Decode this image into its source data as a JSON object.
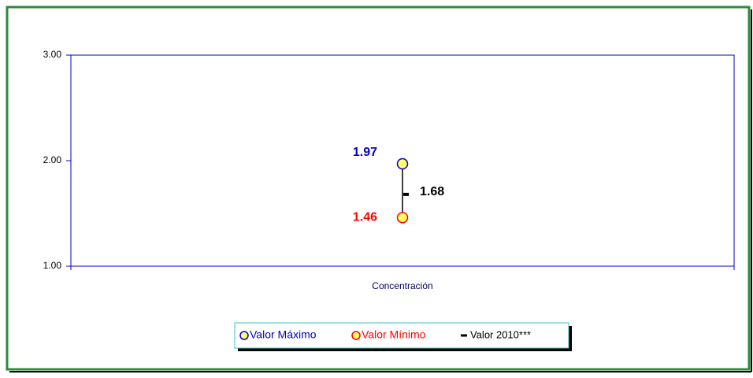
{
  "chart_data": {
    "type": "hilo",
    "x_label": "Concentración",
    "categories": [
      "Concentración"
    ],
    "series": [
      {
        "name": "Valor Máximo",
        "color": "#0000cc",
        "values": [
          1.97
        ]
      },
      {
        "name": "Valor Mínimo",
        "color": "#ff0000",
        "values": [
          1.46
        ]
      },
      {
        "name": "Valor 2010***",
        "color": "#000000",
        "values": [
          1.68
        ]
      }
    ],
    "marker_fill": "#ffff66",
    "ylim": [
      1,
      3
    ],
    "yticks": [
      {
        "value": 1,
        "label": "1.00"
      },
      {
        "value": 2,
        "label": "2.00"
      },
      {
        "value": 3,
        "label": "3.00"
      }
    ],
    "grid": false
  }
}
